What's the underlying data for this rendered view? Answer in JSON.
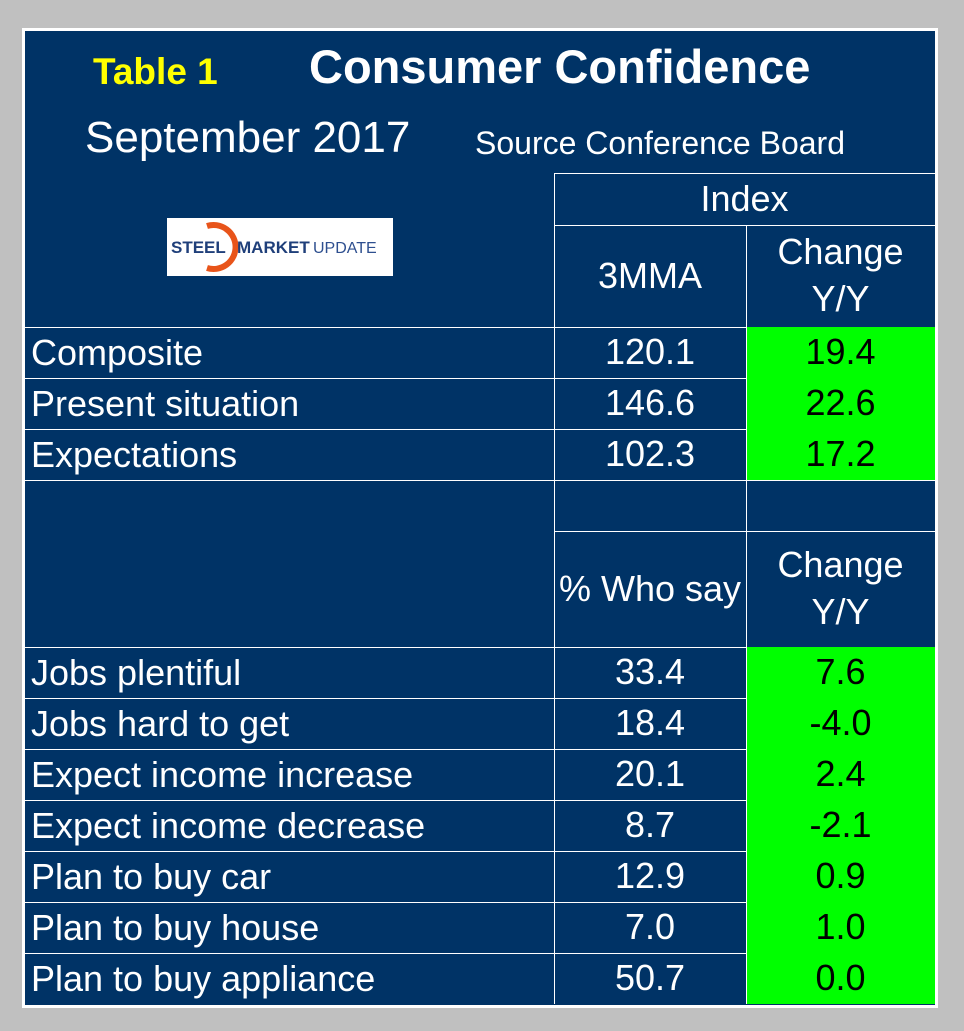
{
  "header": {
    "table_label": "Table 1",
    "title": "Consumer Confidence",
    "period": "September 2017",
    "source": "Source Conference Board",
    "logo_text": "STEEL MARKET UPDATE"
  },
  "index_section": {
    "group_header": "Index",
    "col1": "3MMA",
    "col2": "Change Y/Y",
    "rows": [
      {
        "label": "Composite",
        "value": "120.1",
        "change": "19.4"
      },
      {
        "label": "Present situation",
        "value": "146.6",
        "change": "22.6"
      },
      {
        "label": "Expectations",
        "value": "102.3",
        "change": "17.2"
      }
    ]
  },
  "survey_section": {
    "col1": "% Who say",
    "col2": "Change Y/Y",
    "rows": [
      {
        "label": "Jobs plentiful",
        "value": "33.4",
        "change": "7.6"
      },
      {
        "label": "Jobs hard to get",
        "value": "18.4",
        "change": "-4.0"
      },
      {
        "label": "Expect income increase",
        "value": "20.1",
        "change": "2.4"
      },
      {
        "label": "Expect income decrease",
        "value": "8.7",
        "change": "-2.1"
      },
      {
        "label": "Plan to buy car",
        "value": "12.9",
        "change": "0.9"
      },
      {
        "label": "Plan to buy house",
        "value": "7.0",
        "change": "1.0"
      },
      {
        "label": "Plan to buy appliance",
        "value": "50.7",
        "change": "0.0"
      }
    ]
  },
  "colors": {
    "background": "#003366",
    "highlight": "#00ff00",
    "label_yellow": "#ffff00"
  }
}
